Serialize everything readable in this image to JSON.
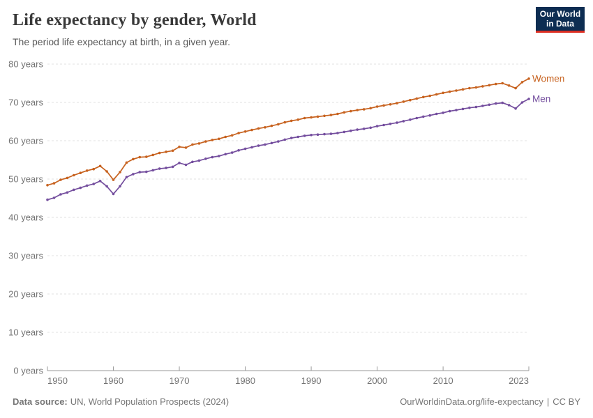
{
  "header": {
    "title": "Life expectancy by gender, World",
    "subtitle": "The period life expectancy at birth, in a given year.",
    "logo": {
      "line1": "Our World",
      "line2": "in Data",
      "bg_color": "#0d2d52",
      "accent_color": "#dc2e22"
    }
  },
  "chart_data": {
    "type": "line",
    "title": "Life expectancy by gender, World",
    "xlabel": "",
    "ylabel": "years",
    "ylim": [
      0,
      80
    ],
    "yticks": [
      0,
      10,
      20,
      30,
      40,
      50,
      60,
      70,
      80
    ],
    "ytick_suffix": " years",
    "xticks": [
      1950,
      1960,
      1970,
      1980,
      1990,
      2000,
      2010,
      2023
    ],
    "grid": "dashed-horizontal",
    "legend_position": "end-of-line",
    "x": [
      1950,
      1951,
      1952,
      1953,
      1954,
      1955,
      1956,
      1957,
      1958,
      1959,
      1960,
      1961,
      1962,
      1963,
      1964,
      1965,
      1966,
      1967,
      1968,
      1969,
      1970,
      1971,
      1972,
      1973,
      1974,
      1975,
      1976,
      1977,
      1978,
      1979,
      1980,
      1981,
      1982,
      1983,
      1984,
      1985,
      1986,
      1987,
      1988,
      1989,
      1990,
      1991,
      1992,
      1993,
      1994,
      1995,
      1996,
      1997,
      1998,
      1999,
      2000,
      2001,
      2002,
      2003,
      2004,
      2005,
      2006,
      2007,
      2008,
      2009,
      2010,
      2011,
      2012,
      2013,
      2014,
      2015,
      2016,
      2017,
      2018,
      2019,
      2020,
      2021,
      2022,
      2023
    ],
    "series": [
      {
        "name": "Women",
        "color": "#c7621f",
        "values": [
          48.4,
          48.9,
          49.8,
          50.3,
          51.0,
          51.6,
          52.2,
          52.6,
          53.4,
          52.0,
          49.8,
          51.8,
          54.3,
          55.2,
          55.7,
          55.8,
          56.3,
          56.8,
          57.1,
          57.4,
          58.4,
          58.2,
          59.0,
          59.3,
          59.8,
          60.2,
          60.5,
          61.0,
          61.4,
          62.0,
          62.4,
          62.8,
          63.2,
          63.5,
          63.9,
          64.3,
          64.8,
          65.2,
          65.5,
          65.9,
          66.1,
          66.3,
          66.5,
          66.7,
          67.0,
          67.4,
          67.7,
          68.0,
          68.2,
          68.5,
          68.9,
          69.2,
          69.5,
          69.8,
          70.2,
          70.6,
          71.0,
          71.4,
          71.7,
          72.1,
          72.5,
          72.8,
          73.1,
          73.4,
          73.7,
          73.9,
          74.2,
          74.5,
          74.8,
          75.0,
          74.4,
          73.7,
          75.3,
          76.2
        ]
      },
      {
        "name": "Men",
        "color": "#744e9e",
        "values": [
          44.6,
          45.1,
          46.0,
          46.5,
          47.2,
          47.7,
          48.3,
          48.7,
          49.5,
          48.1,
          46.1,
          48.1,
          50.5,
          51.3,
          51.8,
          51.9,
          52.3,
          52.7,
          52.9,
          53.2,
          54.2,
          53.7,
          54.5,
          54.8,
          55.3,
          55.7,
          56.0,
          56.5,
          56.9,
          57.5,
          57.9,
          58.3,
          58.7,
          59.0,
          59.4,
          59.8,
          60.3,
          60.7,
          61.0,
          61.3,
          61.5,
          61.6,
          61.7,
          61.8,
          62.0,
          62.3,
          62.6,
          62.9,
          63.1,
          63.4,
          63.8,
          64.1,
          64.4,
          64.7,
          65.1,
          65.5,
          65.9,
          66.3,
          66.6,
          67.0,
          67.3,
          67.7,
          68.0,
          68.3,
          68.6,
          68.8,
          69.1,
          69.4,
          69.7,
          69.9,
          69.3,
          68.4,
          70.0,
          70.9
        ]
      }
    ]
  },
  "footer": {
    "source_label": "Data source:",
    "source_value": "UN, World Population Prospects (2024)",
    "link": "OurWorldinData.org/life-expectancy",
    "separator": "|",
    "license": "CC BY"
  }
}
